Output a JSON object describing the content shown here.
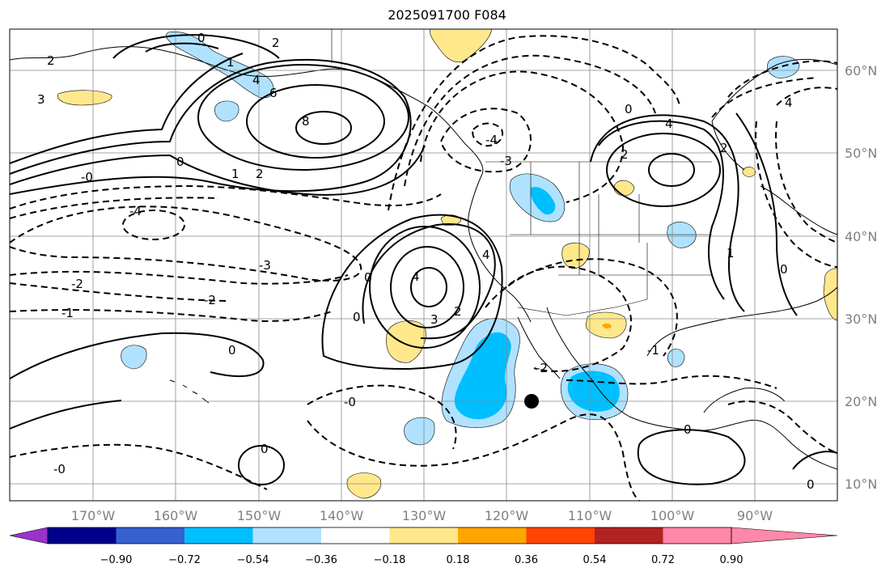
{
  "title": "2025091700 F084",
  "lon_labels": [
    "170°W",
    "160°W",
    "150°W",
    "140°W",
    "130°W",
    "120°W",
    "110°W",
    "100°W",
    "90°W"
  ],
  "lat_labels": [
    "60°N",
    "50°N",
    "40°N",
    "30°N",
    "20°N",
    "10°N"
  ],
  "colorbar": {
    "colors": [
      "#9932cc",
      "#00008b",
      "#3560cf",
      "#00bfff",
      "#b0e2ff",
      "#ffffff",
      "#ffe88c",
      "#ffa500",
      "#ff4500",
      "#b22222",
      "#ff88aa"
    ],
    "tick_labels": [
      "−0.90",
      "−0.72",
      "−0.54",
      "−0.36",
      "−0.18",
      "0.18",
      "0.36",
      "0.54",
      "0.72",
      "0.90"
    ]
  },
  "contour_labels": [
    "0",
    "1",
    "2",
    "3",
    "4",
    "6",
    "8",
    "-0",
    "-1",
    "-2",
    "-3",
    "-4"
  ],
  "storm_marker": {
    "lon": -116.5,
    "lat": 20
  }
}
